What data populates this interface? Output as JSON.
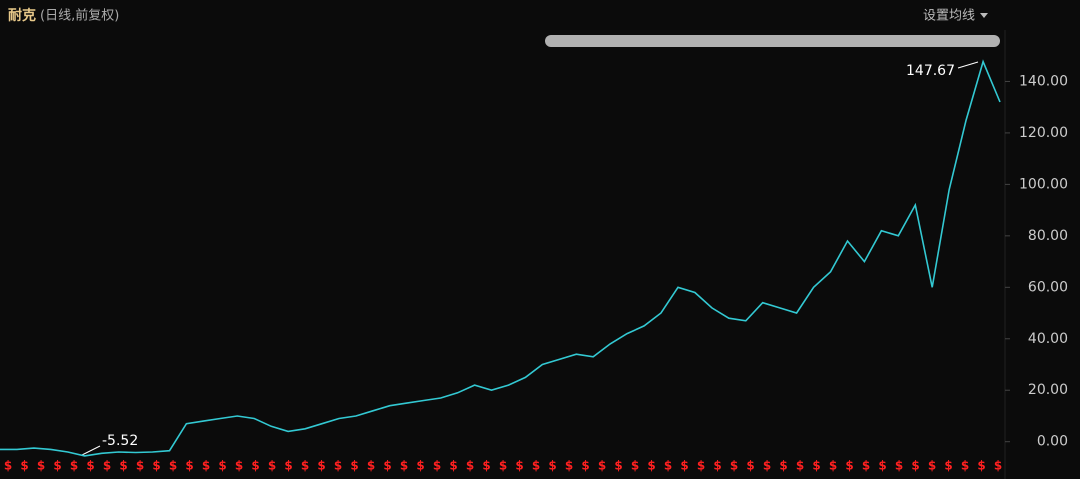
{
  "chart_data": {
    "type": "line",
    "title": "耐克",
    "subtitle": "(日线,前复权)",
    "settings_button": "设置均线",
    "annotations": {
      "max": "147.67",
      "min": "-5.52"
    },
    "dividend_marker": "$",
    "color": "#33c9d3",
    "values": [
      -3,
      -3,
      -2.5,
      -3,
      -4,
      -5.52,
      -4.5,
      -4,
      -4.2,
      -4,
      -3.5,
      7,
      8,
      9,
      10,
      9,
      6,
      4,
      5,
      7,
      9,
      10,
      12,
      14,
      15,
      16,
      17,
      19,
      22,
      20,
      22,
      25,
      30,
      32,
      34,
      33,
      38,
      42,
      45,
      50,
      60,
      58,
      52,
      48,
      47,
      54,
      52,
      50,
      60,
      66,
      78,
      70,
      82,
      80,
      92,
      60,
      98,
      125,
      147.67,
      132
    ],
    "ylim": [
      -11,
      160
    ],
    "yticks": [
      {
        "value": 0,
        "label": "0.00"
      },
      {
        "value": 20,
        "label": "20.00"
      },
      {
        "value": 40,
        "label": "40.00"
      },
      {
        "value": 60,
        "label": "60.00"
      },
      {
        "value": 80,
        "label": "80.00"
      },
      {
        "value": 100,
        "label": "100.00"
      },
      {
        "value": 120,
        "label": "120.00"
      },
      {
        "value": 140,
        "label": "140.00"
      }
    ],
    "grid": false
  }
}
